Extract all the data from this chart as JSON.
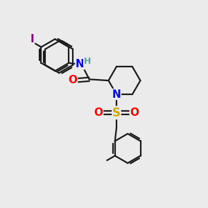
{
  "background_color": "#ebebeb",
  "bond_color": "#1a1a1a",
  "atom_colors": {
    "I": "#8B008B",
    "N": "#0000FF",
    "H": "#5F9EA0",
    "O": "#FF0000",
    "S": "#ccaa00",
    "C": "#1a1a1a"
  },
  "bond_lw": 1.6,
  "font_size_atoms": 11,
  "font_size_H": 9,
  "figsize": [
    3.0,
    3.0
  ],
  "dpi": 100
}
